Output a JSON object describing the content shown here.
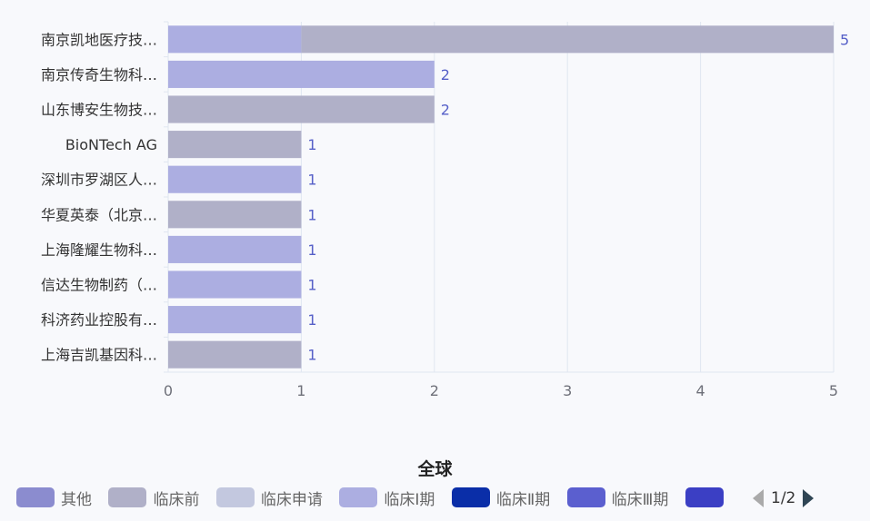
{
  "chart_data": {
    "type": "bar",
    "orientation": "horizontal",
    "stacked": true,
    "title": "全球",
    "categories": [
      "南京凯地医疗技…",
      "南京传奇生物科…",
      "山东博安生物技…",
      "BioNTech AG",
      "深圳市罗湖区人…",
      "华夏英泰（北京…",
      "上海隆耀生物科…",
      "信达生物制药（…",
      "科济药业控股有…",
      "上海吉凯基因科…"
    ],
    "series": [
      {
        "name": "临床Ⅰ期",
        "color": "#acaee1",
        "values": [
          1,
          2,
          0,
          0,
          1,
          0,
          1,
          1,
          1,
          0
        ]
      },
      {
        "name": "临床前",
        "color": "#b0b0c8",
        "values": [
          4,
          0,
          2,
          1,
          0,
          1,
          0,
          0,
          0,
          1
        ]
      }
    ],
    "totals": [
      5,
      2,
      2,
      1,
      1,
      1,
      1,
      1,
      1,
      1
    ],
    "xlim": [
      0,
      5
    ],
    "xticks": [
      0,
      1,
      2,
      3,
      4,
      5
    ],
    "grid": true,
    "legend_position": "bottom"
  },
  "legend": {
    "items": [
      {
        "label": "其他",
        "color": "#8b8ccf"
      },
      {
        "label": "临床前",
        "color": "#b0b0c8"
      },
      {
        "label": "临床申请",
        "color": "#c3c8df"
      },
      {
        "label": "临床Ⅰ期",
        "color": "#acaee1"
      },
      {
        "label": "临床Ⅱ期",
        "color": "#0a2ea8"
      },
      {
        "label": "临床Ⅲ期",
        "color": "#5b5fcf"
      },
      {
        "label": "",
        "color": "#3b3fc4"
      }
    ],
    "page": "1/2"
  },
  "colors": {
    "label": "#5660c8",
    "axis_text": "#6e7079",
    "category_text": "#333333",
    "grid": "#e0e6f1"
  }
}
